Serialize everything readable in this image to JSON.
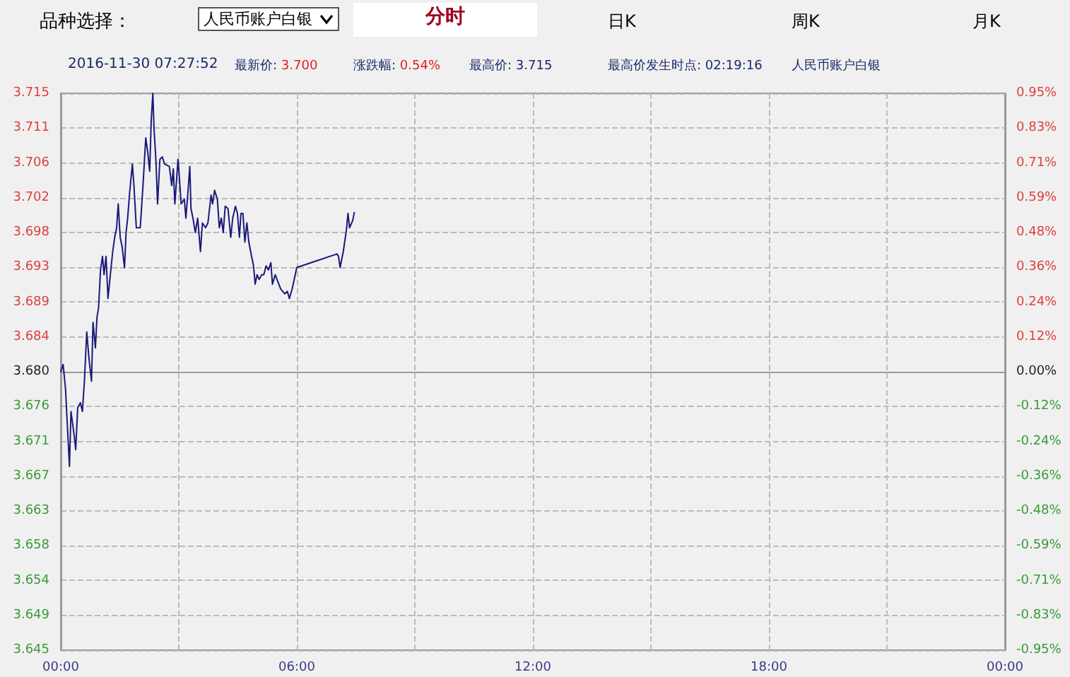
{
  "chart_data": {
    "type": "line",
    "annotations": [
      "品种选择：",
      "人民币账户白银",
      "分时",
      "日K",
      "周K",
      "月K",
      "2016-11-30 07:27:52",
      "最新价: 3.700",
      "涨跌幅: 0.54%",
      "最高价: 3.715",
      "最高价发生时点: 02:19:16",
      "人民币账户白银"
    ],
    "x": [
      0,
      0.06,
      0.12,
      0.22,
      0.26,
      0.34,
      0.38,
      0.43,
      0.5,
      0.55,
      0.6,
      0.66,
      0.72,
      0.78,
      0.82,
      0.88,
      0.92,
      0.96,
      1.01,
      1.06,
      1.1,
      1.15,
      1.2,
      1.26,
      1.32,
      1.37,
      1.42,
      1.46,
      1.51,
      1.56,
      1.62,
      1.66,
      1.7,
      1.75,
      1.82,
      1.86,
      1.92,
      2.02,
      2.09,
      2.16,
      2.21,
      2.26,
      2.3,
      2.34,
      2.37,
      2.42,
      2.46,
      2.52,
      2.58,
      2.64,
      2.76,
      2.82,
      2.86,
      2.9,
      2.98,
      3.02,
      3.06,
      3.14,
      3.18,
      3.24,
      3.28,
      3.31,
      3.36,
      3.42,
      3.48,
      3.55,
      3.6,
      3.68,
      3.74,
      3.82,
      3.86,
      3.91,
      3.98,
      4.03,
      4.08,
      4.13,
      4.18,
      4.25,
      4.32,
      4.37,
      4.44,
      4.49,
      4.54,
      4.58,
      4.63,
      4.68,
      4.73,
      4.78,
      4.85,
      4.9,
      4.94,
      4.99,
      5.04,
      5.11,
      5.16,
      5.22,
      5.28,
      5.34,
      5.38,
      5.45,
      5.52,
      5.59,
      5.69,
      5.76,
      5.81,
      5.88,
      6.0,
      6.48,
      7.02,
      7.06,
      7.1,
      7.18,
      7.26,
      7.3,
      7.34,
      7.42,
      7.46
    ],
    "series": [
      {
        "color": "#1a1a7a",
        "values": [
          3.68,
          3.6809,
          3.6779,
          3.6681,
          3.675,
          3.672,
          3.6702,
          3.6755,
          3.6761,
          3.675,
          3.6788,
          3.685,
          3.6815,
          3.6788,
          3.6862,
          3.683,
          3.6868,
          3.688,
          3.6928,
          3.6945,
          3.6922,
          3.6945,
          3.6892,
          3.6922,
          3.6951,
          3.6969,
          3.6981,
          3.7011,
          3.6969,
          3.6957,
          3.6931,
          3.6975,
          3.6993,
          3.7025,
          3.7061,
          3.7034,
          3.6981,
          3.6981,
          3.7034,
          3.7094,
          3.7076,
          3.7052,
          3.7117,
          3.715,
          3.7106,
          3.7064,
          3.7011,
          3.7067,
          3.707,
          3.7061,
          3.7058,
          3.7034,
          3.7055,
          3.7011,
          3.7067,
          3.704,
          3.7011,
          3.7017,
          3.6993,
          3.7031,
          3.7058,
          3.7005,
          3.6993,
          3.6975,
          3.6993,
          3.6951,
          3.6987,
          3.6981,
          3.6987,
          3.7022,
          3.7011,
          3.7028,
          3.7017,
          3.6981,
          3.6993,
          3.6975,
          3.7008,
          3.7005,
          3.6969,
          3.6993,
          3.7008,
          3.6999,
          3.6969,
          3.6999,
          3.6999,
          3.6963,
          3.6987,
          3.6963,
          3.6945,
          3.6933,
          3.691,
          3.6922,
          3.6916,
          3.6922,
          3.6922,
          3.6933,
          3.6928,
          3.6937,
          3.691,
          3.6922,
          3.6913,
          3.6904,
          3.6898,
          3.6901,
          3.6892,
          3.6904,
          3.6931,
          3.6939,
          3.6948,
          3.6945,
          3.6931,
          3.6951,
          3.6978,
          3.6999,
          3.6981,
          3.699,
          3.7
        ]
      }
    ],
    "xlim": [
      0,
      24
    ],
    "xticks": [
      {
        "value": 0,
        "label": "00:00"
      },
      {
        "value": 3,
        "label": null
      },
      {
        "value": 6,
        "label": "06:00"
      },
      {
        "value": 9,
        "label": null
      },
      {
        "value": 12,
        "label": "12:00"
      },
      {
        "value": 15,
        "label": null
      },
      {
        "value": 18,
        "label": "18:00"
      },
      {
        "value": 21,
        "label": null
      },
      {
        "value": 24,
        "label": "00:00"
      }
    ],
    "ylim": [
      3.645,
      3.715
    ],
    "yticks": [
      {
        "value": 3.645,
        "label": "3.645"
      },
      {
        "value": 3.649375,
        "label": "3.649"
      },
      {
        "value": 3.65375,
        "label": "3.654"
      },
      {
        "value": 3.658125,
        "label": "3.658"
      },
      {
        "value": 3.6625,
        "label": "3.663"
      },
      {
        "value": 3.666875,
        "label": "3.667"
      },
      {
        "value": 3.67125,
        "label": "3.671"
      },
      {
        "value": 3.675625,
        "label": "3.676"
      },
      {
        "value": 3.68,
        "label": "3.680"
      },
      {
        "value": 3.684375,
        "label": "3.684"
      },
      {
        "value": 3.68875,
        "label": "3.689"
      },
      {
        "value": 3.693125,
        "label": "3.693"
      },
      {
        "value": 3.6975,
        "label": "3.698"
      },
      {
        "value": 3.701875,
        "label": "3.702"
      },
      {
        "value": 3.70625,
        "label": "3.706"
      },
      {
        "value": 3.710625,
        "label": "3.711"
      },
      {
        "value": 3.715,
        "label": "3.715"
      }
    ],
    "y2lim": [
      -0.95,
      0.95
    ],
    "y2ticks": [
      {
        "value": -0.95,
        "label": "-0.95%"
      },
      {
        "value": -0.83125,
        "label": "-0.83%"
      },
      {
        "value": -0.7125,
        "label": "-0.71%"
      },
      {
        "value": -0.59375,
        "label": "-0.59%"
      },
      {
        "value": -0.475,
        "label": "-0.48%"
      },
      {
        "value": -0.35625,
        "label": "-0.36%"
      },
      {
        "value": -0.2375,
        "label": "-0.24%"
      },
      {
        "value": -0.11875,
        "label": "-0.12%"
      },
      {
        "value": 0,
        "label": "0.00%"
      },
      {
        "value": 0.11875,
        "label": "0.12%"
      },
      {
        "value": 0.2375,
        "label": "0.24%"
      },
      {
        "value": 0.35625,
        "label": "0.36%"
      },
      {
        "value": 0.475,
        "label": "0.48%"
      },
      {
        "value": 0.59375,
        "label": "0.59%"
      },
      {
        "value": 0.7125,
        "label": "0.71%"
      },
      {
        "value": 0.83125,
        "label": "0.83%"
      },
      {
        "value": 0.95,
        "label": "0.95%"
      }
    ],
    "grid": true,
    "marker": "none",
    "line_style": "solid"
  }
}
